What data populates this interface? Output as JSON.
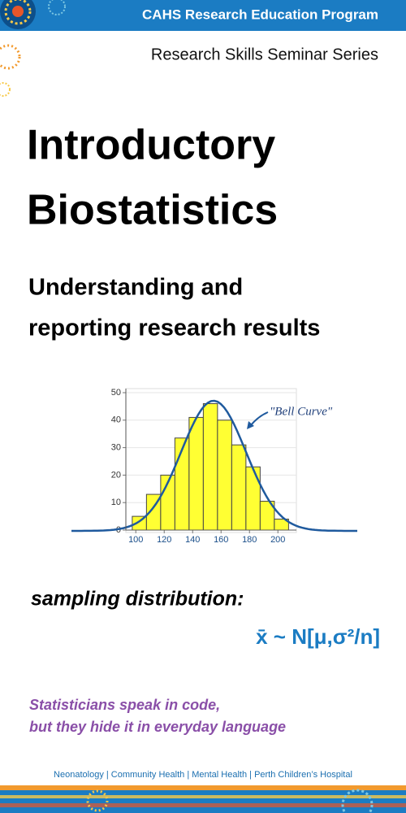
{
  "header": {
    "program": "CAHS Research Education Program",
    "series": "Research Skills Seminar Series"
  },
  "title": [
    "Introductory",
    "Biostatistics"
  ],
  "subtitle": [
    "Understanding and",
    "reporting research results"
  ],
  "figure": {
    "type": "histogram",
    "annotation": "\"Bell Curve\"",
    "bins": [
      97.5,
      107.5,
      117.5,
      127.5,
      137.5,
      147.5,
      157.5,
      167.5,
      177.5,
      187.5,
      197.5,
      207.5
    ],
    "counts": [
      5,
      13,
      20,
      33.5,
      41,
      46,
      40,
      31,
      23,
      10.5,
      4
    ],
    "color": "#ffff33",
    "xlim": [
      93,
      213
    ],
    "ylim": [
      0,
      50
    ],
    "xticks": [
      100,
      120,
      140,
      160,
      180,
      200
    ],
    "yticks": [
      0,
      10,
      20,
      30,
      40,
      50
    ]
  },
  "caption": "sampling distribution:",
  "formula": "x̄ ~ N[μ,σ²/n]",
  "tagline": [
    "Statisticians speak in code,",
    "but they hide it in everyday language"
  ],
  "footer": "Neonatology  |  Community Health  |  Mental Health  |  Perth Children’s Hospital"
}
